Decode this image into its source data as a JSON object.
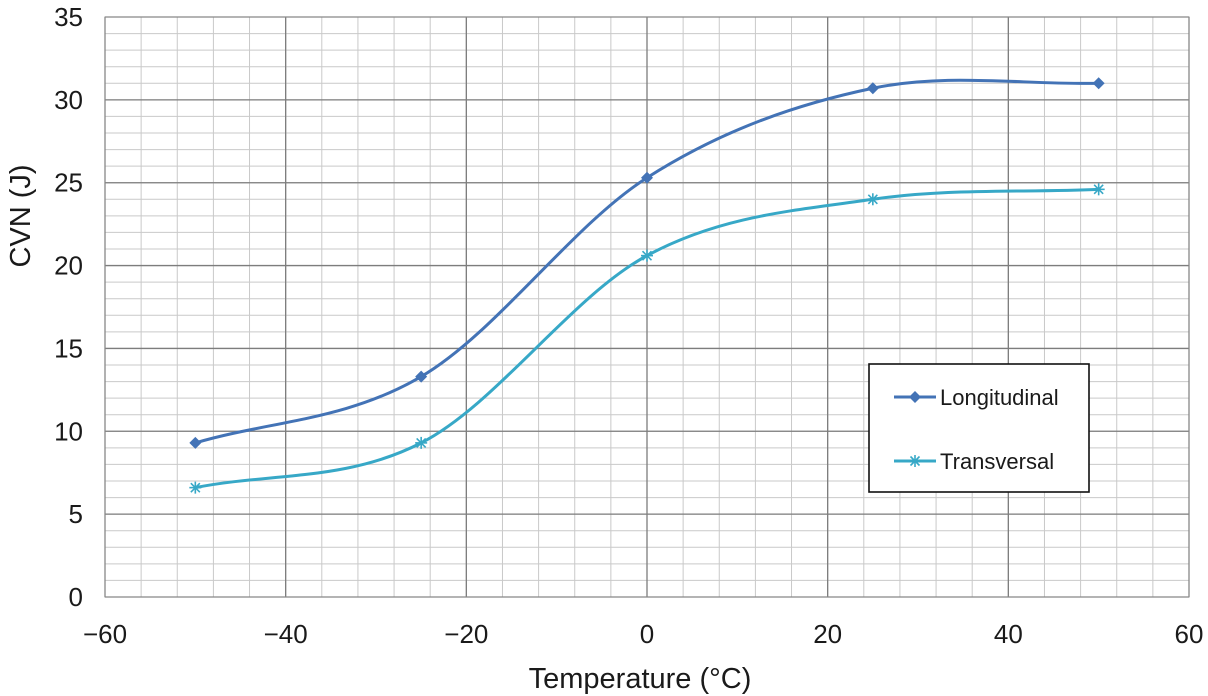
{
  "chart_data": {
    "type": "line",
    "title": "",
    "xlabel": "Temperature (°C)",
    "ylabel": "CVN (J)",
    "xlim": [
      -60,
      60
    ],
    "ylim": [
      0,
      35
    ],
    "xticks": [
      -60,
      -40,
      -20,
      0,
      20,
      40,
      60
    ],
    "yticks": [
      0,
      5,
      10,
      15,
      20,
      25,
      30,
      35
    ],
    "xtick_labels": [
      "−60",
      "−40",
      "−20",
      "0",
      "20",
      "40",
      "60"
    ],
    "ytick_labels": [
      "0",
      "5",
      "10",
      "15",
      "20",
      "25",
      "30",
      "35"
    ],
    "grid": true,
    "legend_position": "center-right",
    "series": [
      {
        "name": "Longitudinal",
        "marker": "diamond",
        "color": "#4373B6",
        "x": [
          -50,
          -25,
          0,
          25,
          50
        ],
        "values": [
          9.3,
          13.3,
          25.3,
          30.7,
          31.0
        ]
      },
      {
        "name": "Transversal",
        "marker": "asterisk",
        "color": "#37A8C7",
        "x": [
          -50,
          -25,
          0,
          25,
          50
        ],
        "values": [
          6.6,
          9.3,
          20.6,
          24.0,
          24.6
        ]
      }
    ]
  }
}
